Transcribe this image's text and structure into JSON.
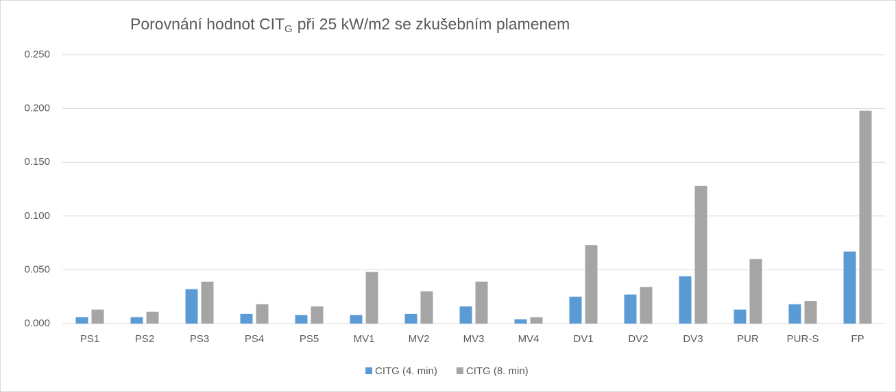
{
  "chart_data": {
    "type": "bar",
    "title": "Porovnání hodnot CIT",
    "title_subscript": "G",
    "title_rest": "při 25 kW/m2 se zkušebním plamenem",
    "categories": [
      "PS1",
      "PS2",
      "PS3",
      "PS4",
      "PS5",
      "MV1",
      "MV2",
      "MV3",
      "MV4",
      "DV1",
      "DV2",
      "DV3",
      "PUR",
      "PUR-S",
      "FP"
    ],
    "series": [
      {
        "name": "CITG (4. min)",
        "color": "#5b9bd5",
        "values": [
          0.006,
          0.006,
          0.032,
          0.009,
          0.008,
          0.008,
          0.009,
          0.016,
          0.004,
          0.025,
          0.027,
          0.044,
          0.013,
          0.018,
          0.067
        ]
      },
      {
        "name": "CITG (8. min)",
        "color": "#a5a5a5",
        "values": [
          0.013,
          0.011,
          0.039,
          0.018,
          0.016,
          0.048,
          0.03,
          0.039,
          0.006,
          0.073,
          0.034,
          0.128,
          0.06,
          0.021,
          0.198
        ]
      }
    ],
    "ylim": [
      0,
      0.25
    ],
    "yticks": [
      {
        "value": 0,
        "label": "0.000"
      },
      {
        "value": 0.05,
        "label": "0.050"
      },
      {
        "value": 0.1,
        "label": "0.100"
      },
      {
        "value": 0.15,
        "label": "0.150"
      },
      {
        "value": 0.2,
        "label": "0.200"
      },
      {
        "value": 0.25,
        "label": "0.250"
      }
    ],
    "grid": true,
    "legend": "bottom"
  }
}
